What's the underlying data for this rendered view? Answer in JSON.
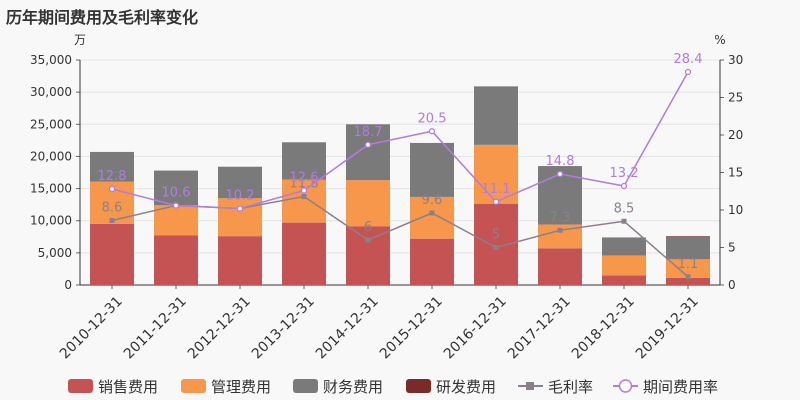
{
  "title": "历年期间费用及毛利率变化",
  "colors": {
    "sales": "#c65353",
    "mgmt": "#f7974b",
    "finance": "#7a7a7a",
    "rd": "#7b2a2a",
    "gross": "#8c7f8c",
    "period": "#b07be2"
  },
  "chart_data": {
    "type": "bar",
    "stacked": true,
    "title": "历年期间费用及毛利率变化",
    "categories": [
      "2010-12-31",
      "2011-12-31",
      "2012-12-31",
      "2013-12-31",
      "2014-12-31",
      "2015-12-31",
      "2016-12-31",
      "2017-12-31",
      "2018-12-31",
      "2019-12-31"
    ],
    "y_left": {
      "unit": "万",
      "ylim": [
        0,
        35000
      ],
      "ticks": [
        "0",
        "5,000",
        "10,000",
        "15,000",
        "20,000",
        "25,000",
        "30,000",
        "35,000"
      ],
      "tick_values": [
        0,
        5000,
        10000,
        15000,
        20000,
        25000,
        30000,
        35000
      ]
    },
    "y_right": {
      "unit": "%",
      "ylim": [
        0,
        30
      ],
      "ticks": [
        "0",
        "5",
        "10",
        "15",
        "20",
        "25",
        "30"
      ],
      "tick_values": [
        0,
        5,
        10,
        15,
        20,
        25,
        30
      ]
    },
    "grid": true,
    "legend_position": "bottom",
    "series": [
      {
        "name": "销售费用",
        "kind": "bar",
        "values": [
          9500,
          7700,
          7600,
          9700,
          9100,
          7200,
          12600,
          5700,
          1500,
          1100
        ]
      },
      {
        "name": "管理费用",
        "kind": "bar",
        "values": [
          6600,
          4700,
          5900,
          6700,
          7200,
          6500,
          9200,
          3700,
          3100,
          2900
        ]
      },
      {
        "name": "财务费用",
        "kind": "bar",
        "values": [
          4600,
          5400,
          4900,
          5800,
          8700,
          8400,
          9100,
          9100,
          2800,
          3500
        ]
      },
      {
        "name": "研发费用",
        "kind": "bar",
        "values": [
          0,
          0,
          0,
          0,
          0,
          0,
          0,
          0,
          0,
          100
        ]
      },
      {
        "name": "毛利率",
        "kind": "line",
        "axis": "right",
        "values": [
          8.6,
          10.6,
          10.2,
          11.8,
          6,
          9.6,
          5,
          7.3,
          8.5,
          1.1
        ],
        "labels": [
          "8.6",
          "10.6",
          "10.2",
          "11.8",
          "6",
          "9.6",
          "5",
          "7.3",
          "8.5",
          "1.1"
        ]
      },
      {
        "name": "期间费用率",
        "kind": "line",
        "axis": "right",
        "values": [
          12.8,
          10.6,
          10.2,
          12.6,
          18.7,
          20.5,
          11.1,
          14.8,
          13.2,
          28.4
        ],
        "labels": [
          "12.8",
          "10.6",
          "10.2",
          "12.6",
          "18.7",
          "20.5",
          "11.1",
          "14.8",
          "13.2",
          "28.4"
        ]
      }
    ]
  }
}
